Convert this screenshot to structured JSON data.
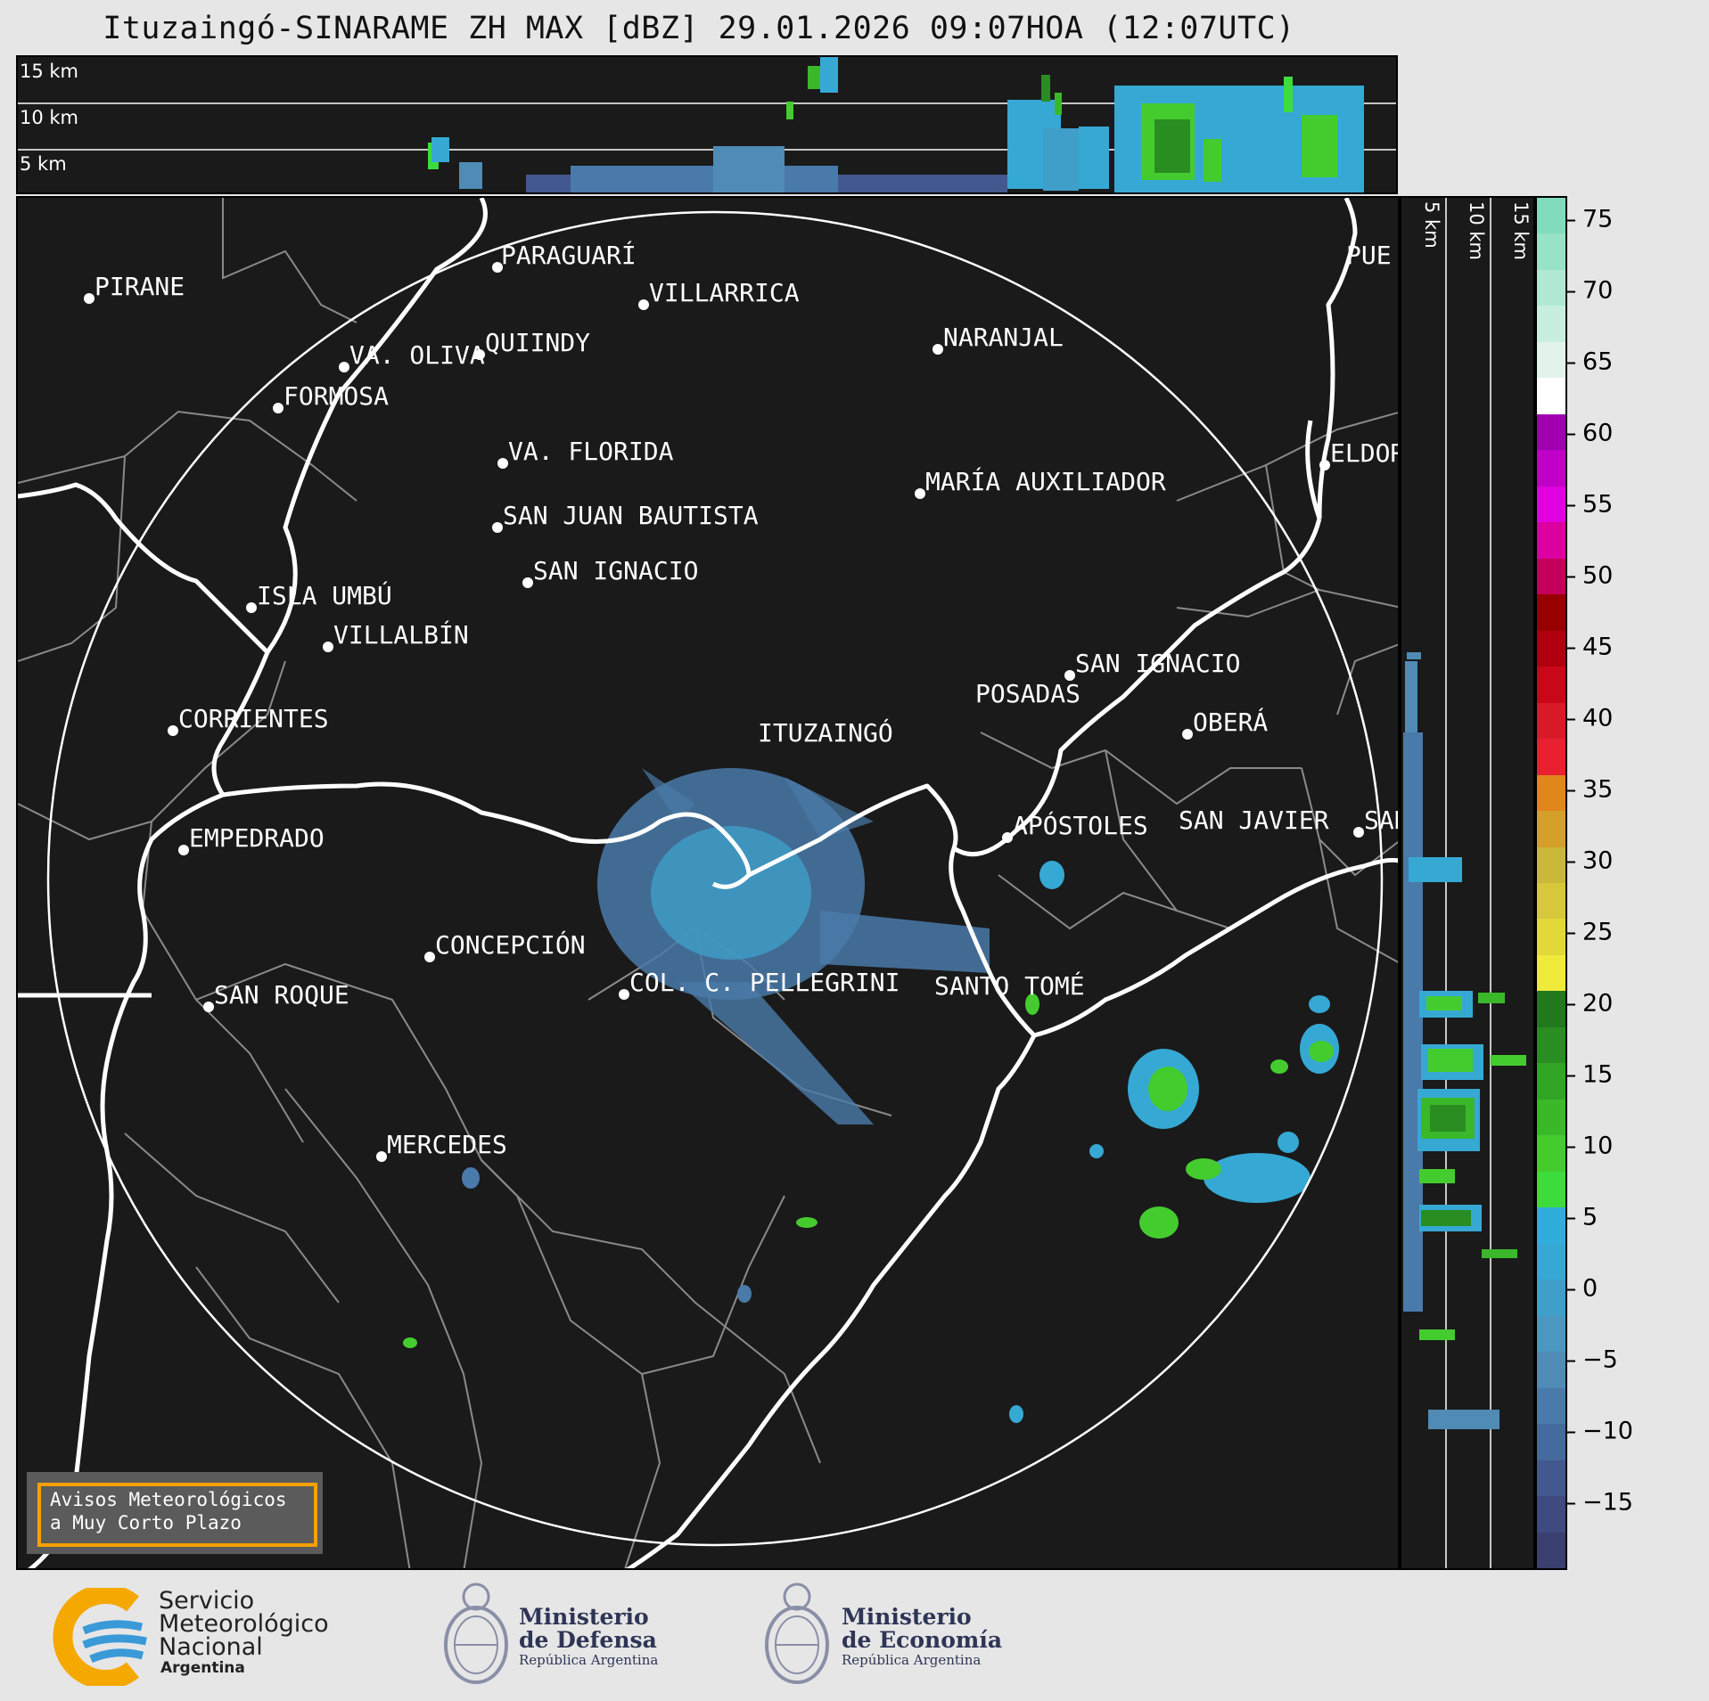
{
  "title": "Ituzaingó-SINARAME ZH MAX [dBZ] 29.01.2026 09:07HOA (12:07UTC)",
  "top_panel": {
    "height_labels": [
      "15 km",
      "10 km",
      "5 km"
    ]
  },
  "side_panel": {
    "height_labels": [
      "5 km",
      "10 km",
      "15 km"
    ]
  },
  "colorbar": {
    "ticks": [
      "75",
      "70",
      "65",
      "60",
      "55",
      "50",
      "45",
      "40",
      "35",
      "30",
      "25",
      "20",
      "15",
      "10",
      "5",
      "0",
      "−5",
      "−10",
      "−15"
    ],
    "colors": [
      "#3b3f70",
      "#3f4a80",
      "#43588e",
      "#456a9d",
      "#4a7aa9",
      "#4f8bb5",
      "#4b97c0",
      "#3f9fc9",
      "#36a8d4",
      "#2faedc",
      "#3cdc3c",
      "#44cc2e",
      "#3bb82a",
      "#32a426",
      "#2a8d22",
      "#22781d",
      "#f0ea3a",
      "#e3d83a",
      "#d6c83a",
      "#c9b83a",
      "#d4a02a",
      "#e0861a",
      "#e82030",
      "#d81a28",
      "#c80818",
      "#b00010",
      "#980000",
      "#c4005c",
      "#dc00a0",
      "#e000e0",
      "#c000c8",
      "#a000b0",
      "#ffffff",
      "#e2f4ea",
      "#c8eee0",
      "#b0e8d4",
      "#98e2c8",
      "#80dcbc"
    ]
  },
  "cities": [
    {
      "name": "PARAGUARÍ"
    },
    {
      "name": "PIRANE"
    },
    {
      "name": "VILLARRICA"
    },
    {
      "name": "QUIINDY"
    },
    {
      "name": "VA. OLIVA"
    },
    {
      "name": "NARANJAL"
    },
    {
      "name": "FORMOSA"
    },
    {
      "name": "VA. FLORIDA"
    },
    {
      "name": "ELDOR"
    },
    {
      "name": "MARÍA AUXILIADOR"
    },
    {
      "name": "SAN JUAN BAUTISTA"
    },
    {
      "name": "SAN IGNACIO"
    },
    {
      "name": "ISLA UMBÚ"
    },
    {
      "name": "VILLALBÍN"
    },
    {
      "name": "SAN IGNACIO"
    },
    {
      "name": "POSADAS"
    },
    {
      "name": "CORRIENTES"
    },
    {
      "name": "ITUZAINGÓ"
    },
    {
      "name": "OBERÁ"
    },
    {
      "name": "EMPEDRADO"
    },
    {
      "name": "APÓSTOLES"
    },
    {
      "name": "SAN JAVIER"
    },
    {
      "name": "SAN"
    },
    {
      "name": "CONCEPCIÓN"
    },
    {
      "name": "COL. C. PELLEGRINI"
    },
    {
      "name": "SANTO TOMÉ"
    },
    {
      "name": "SAN ROQUE"
    },
    {
      "name": "MERCEDES"
    },
    {
      "name": "PUE"
    }
  ],
  "avisos": {
    "line1": "Avisos Meteorológicos",
    "line2": "a Muy Corto Plazo"
  },
  "footer": {
    "smn": {
      "line1": "Servicio",
      "line2": "Meteorológico",
      "line3": "Nacional",
      "line4": "Argentina"
    },
    "defensa": {
      "line1": "Ministerio",
      "line2": "de Defensa",
      "line3": "República Argentina"
    },
    "economia": {
      "line1": "Ministerio",
      "line2": "de Economía",
      "line3": "República Argentina"
    }
  }
}
